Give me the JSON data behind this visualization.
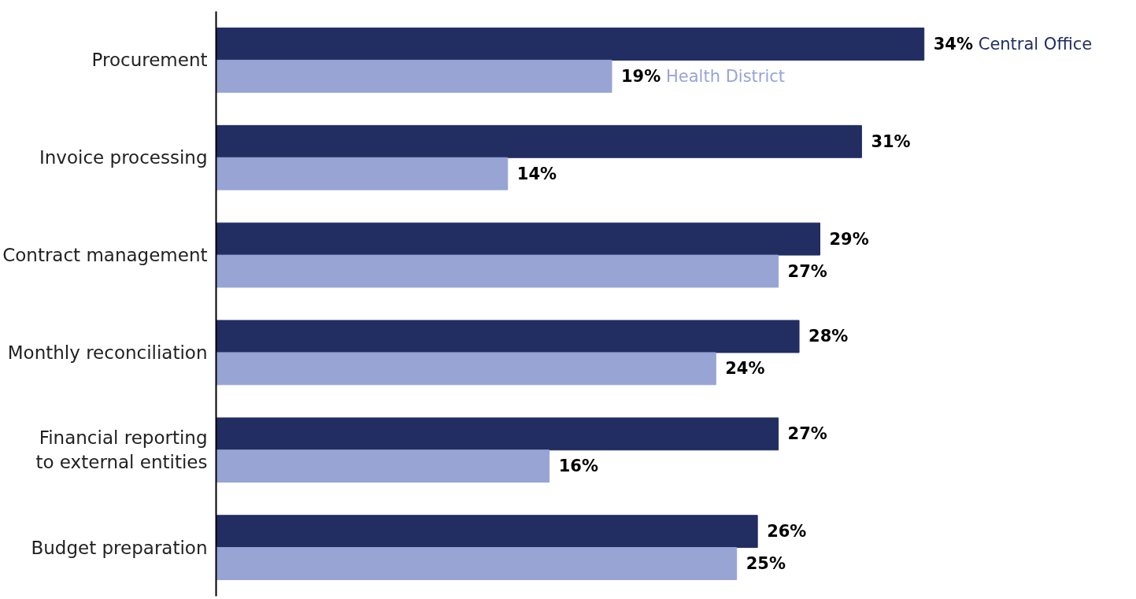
{
  "chart_data": {
    "type": "bar",
    "orientation": "horizontal",
    "categories": [
      "Procurement",
      "Invoice processing",
      "Contract management",
      "Monthly reconciliation",
      "Financial reporting to external entities",
      "Budget preparation"
    ],
    "series": [
      {
        "name": "Central Office",
        "color": "#222d62",
        "values": [
          34,
          31,
          29,
          28,
          27,
          26
        ],
        "value_labels": [
          "34%",
          "31%",
          "29%",
          "28%",
          "27%",
          "26%"
        ]
      },
      {
        "name": "Health District",
        "color": "#97a4d4",
        "values": [
          19,
          14,
          27,
          24,
          16,
          25
        ],
        "value_labels": [
          "19%",
          "14%",
          "27%",
          "24%",
          "16%",
          "25%"
        ]
      }
    ],
    "tick_labels": "y",
    "grid": false
  }
}
